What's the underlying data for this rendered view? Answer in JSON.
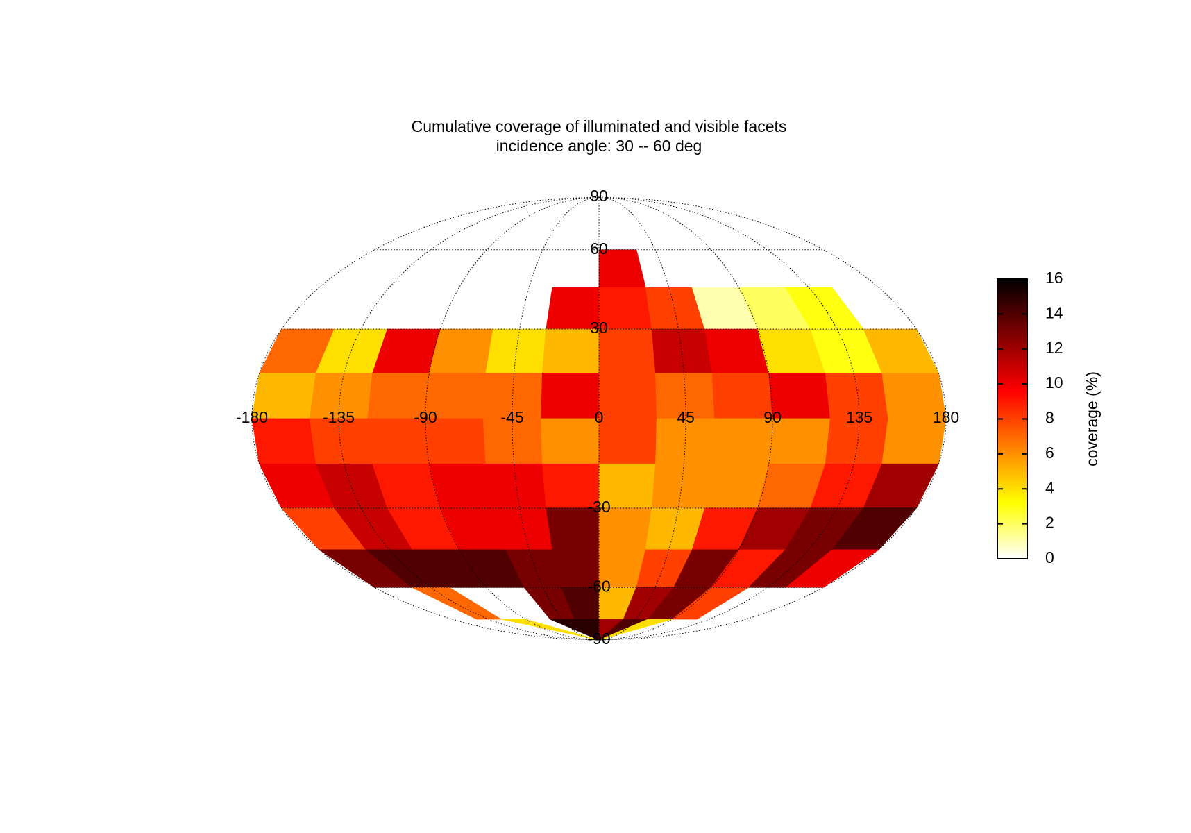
{
  "chart_data": {
    "type": "mollweide-heatmap",
    "title": "Cumulative coverage of illuminated and visible facets",
    "subtitle": "incidence angle: 30 -- 60 deg",
    "lon_bins": [
      -180,
      -150,
      -120,
      -90,
      -60,
      -30,
      0,
      30,
      60,
      90,
      120,
      150,
      180
    ],
    "lat_bins": [
      90,
      75,
      60,
      45,
      30,
      15,
      0,
      -15,
      -30,
      -45,
      -60,
      -75,
      -90
    ],
    "values": [
      [
        null,
        null,
        null,
        null,
        null,
        null,
        null,
        null,
        null,
        null,
        null,
        null
      ],
      [
        null,
        null,
        null,
        null,
        null,
        null,
        null,
        null,
        null,
        null,
        null,
        null
      ],
      [
        null,
        null,
        null,
        null,
        null,
        null,
        10,
        null,
        null,
        null,
        null,
        null
      ],
      [
        null,
        null,
        null,
        null,
        null,
        10,
        9,
        8,
        1,
        2,
        3,
        null
      ],
      [
        7,
        4,
        10,
        6,
        4,
        5,
        8,
        11,
        10,
        4,
        3,
        5
      ],
      [
        5,
        6,
        7,
        7,
        7,
        10,
        8,
        7,
        8,
        10,
        8,
        6
      ],
      [
        9,
        8,
        8,
        8,
        7,
        6,
        8,
        6,
        6,
        6,
        8,
        6
      ],
      [
        10,
        11,
        9,
        10,
        10,
        9,
        5,
        6,
        6,
        7,
        9,
        12
      ],
      [
        8,
        11,
        9,
        10,
        10,
        13,
        6,
        5,
        9,
        12,
        13,
        14
      ],
      [
        13,
        14,
        14,
        14,
        13,
        13,
        6,
        8,
        13,
        9,
        13,
        10
      ],
      [
        null,
        7,
        null,
        null,
        13,
        14,
        5,
        12,
        13,
        8,
        null,
        null
      ],
      [
        null,
        null,
        4,
        null,
        15,
        15,
        12,
        14,
        4,
        null,
        null,
        null
      ]
    ],
    "xticks": [
      -180,
      -135,
      -90,
      -45,
      0,
      45,
      90,
      135,
      180
    ],
    "yticks": [
      90,
      60,
      30,
      -30,
      -60,
      -90
    ],
    "grid": true,
    "clim": [
      0,
      16
    ],
    "cticks": [
      0,
      2,
      4,
      6,
      8,
      10,
      12,
      14,
      16
    ],
    "colorbar_label": "coverage (%)",
    "colormap": [
      "#ffffff",
      "#ffff00",
      "#ff8000",
      "#ff0000",
      "#800000",
      "#000000"
    ]
  }
}
